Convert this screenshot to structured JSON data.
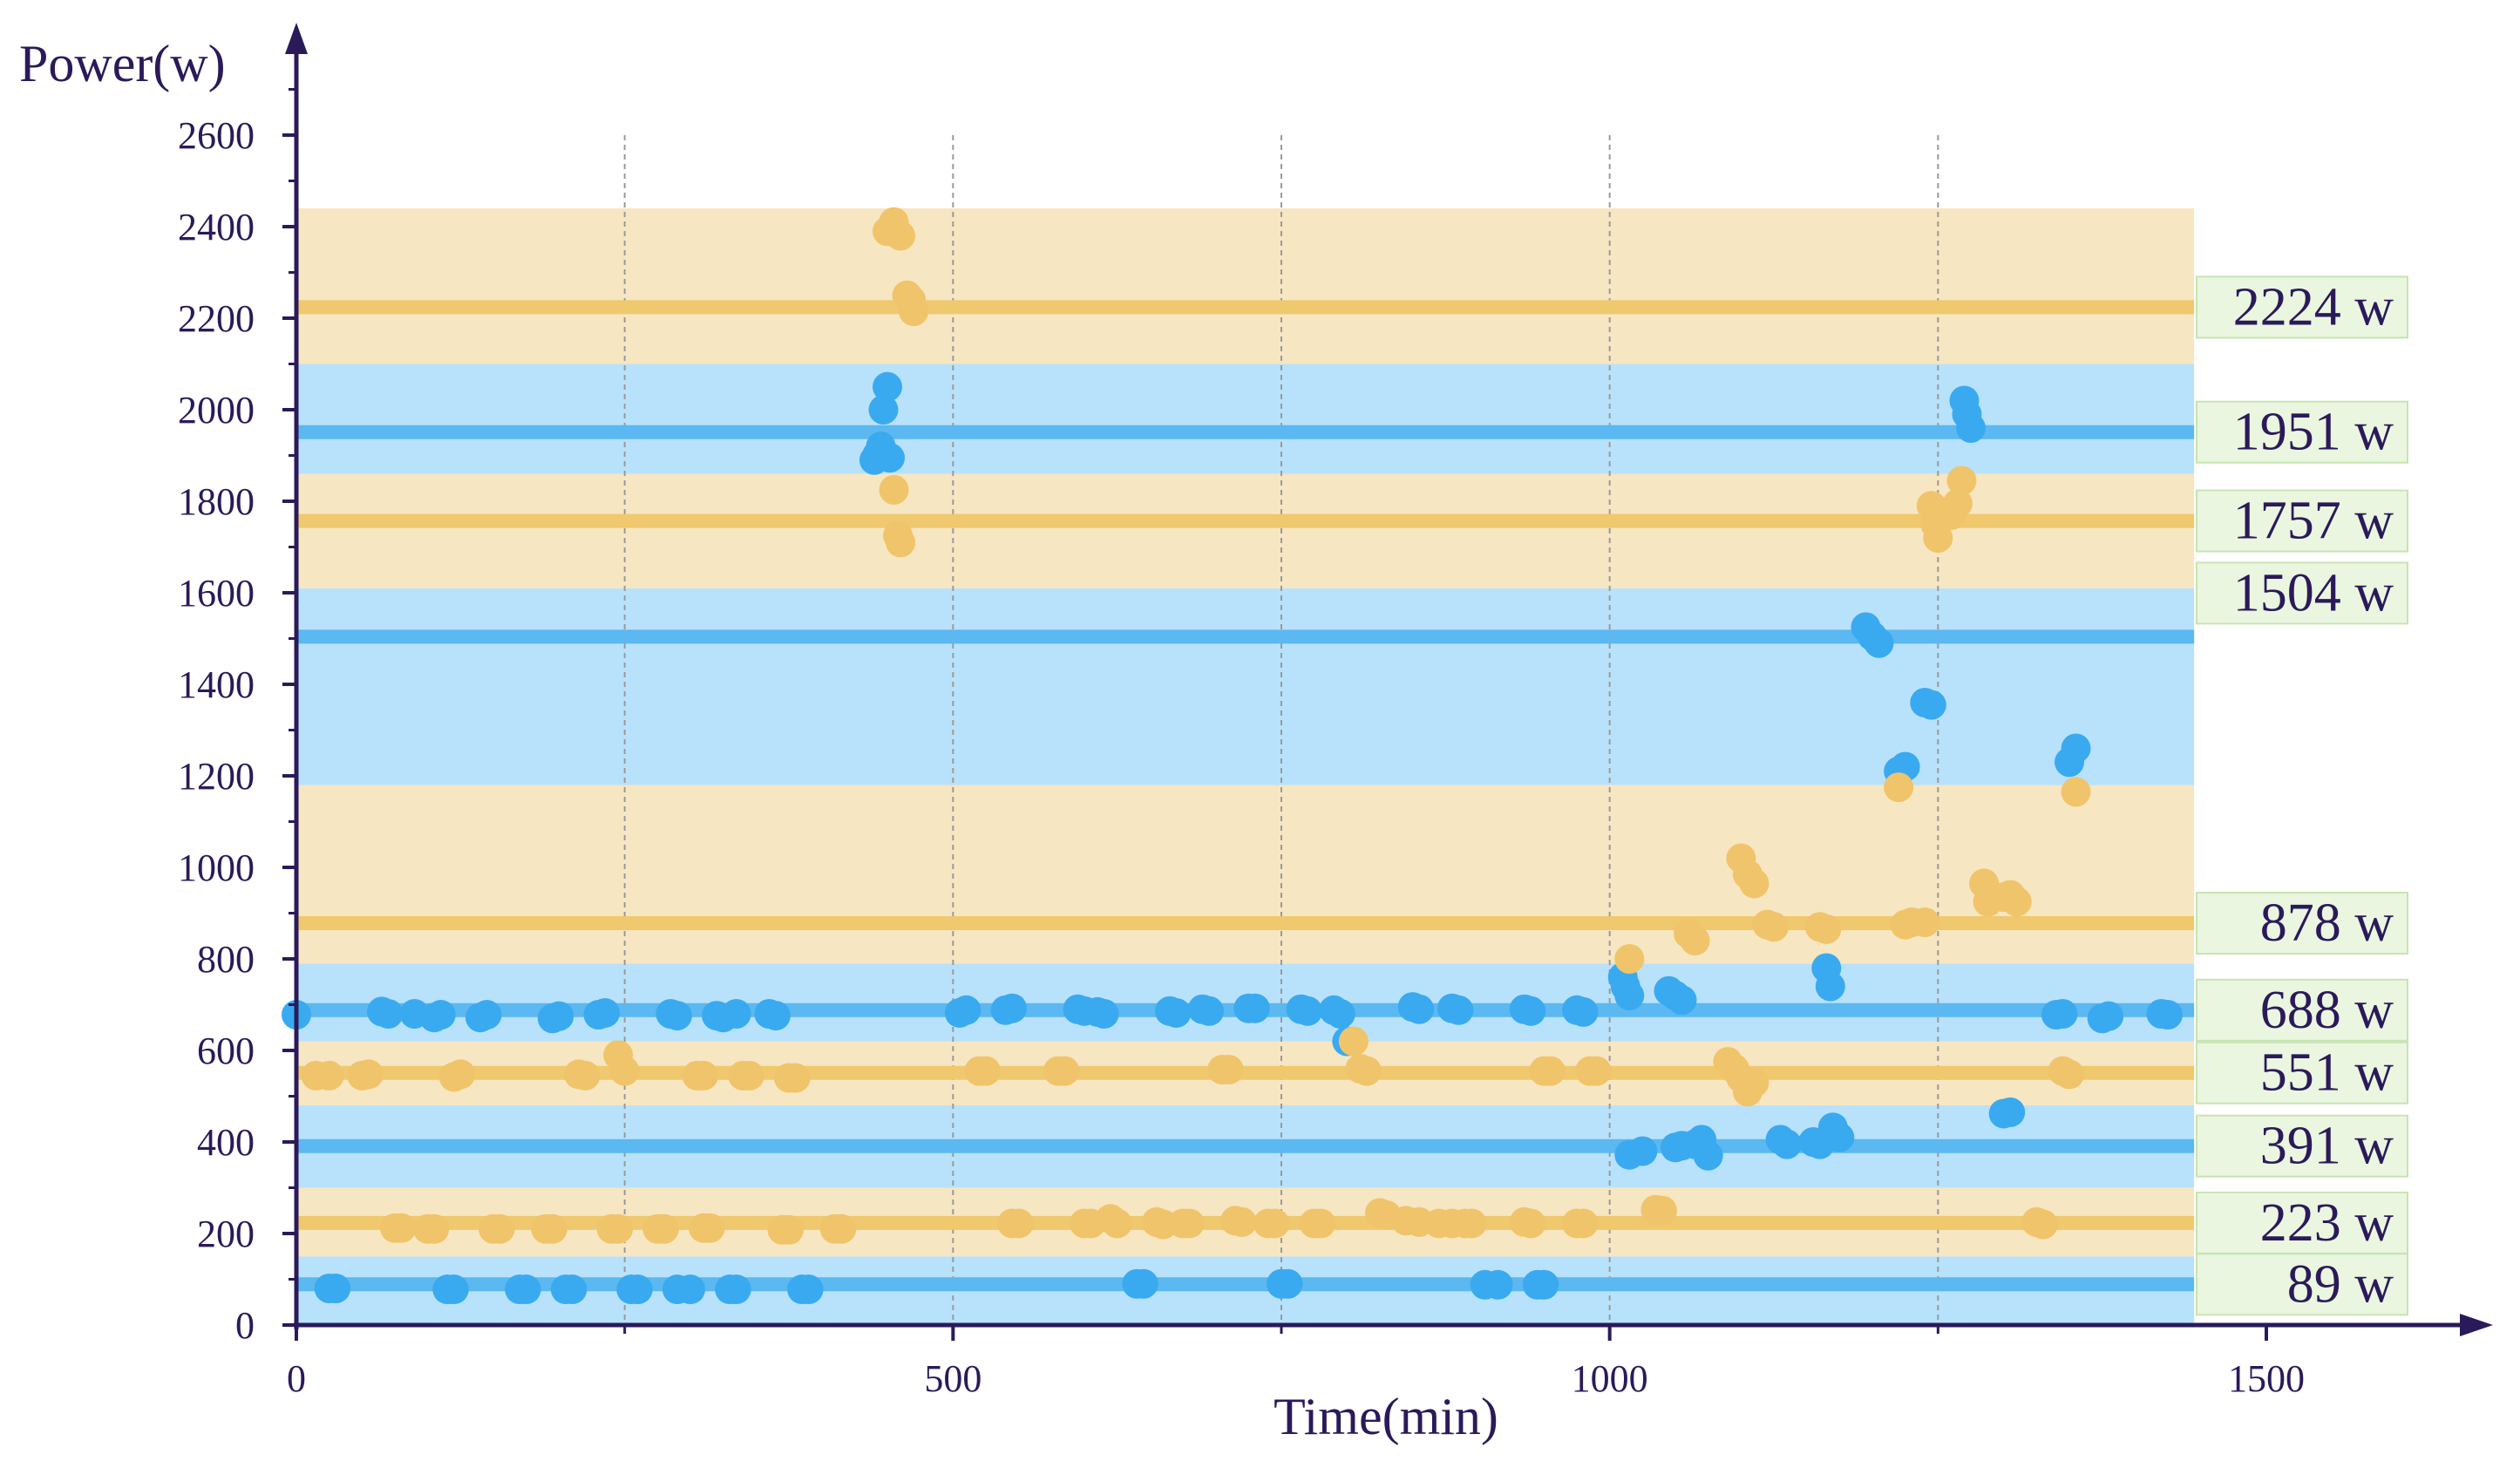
{
  "chart_data": {
    "type": "scatter",
    "title": "",
    "xlabel": "Time(min)",
    "ylabel": "Power(w)",
    "xlim": [
      0,
      1650
    ],
    "ylim": [
      0,
      2720
    ],
    "x_ticks": [
      0,
      500,
      1000,
      1500
    ],
    "y_ticks": [
      0,
      200,
      400,
      600,
      800,
      1000,
      1200,
      1400,
      1600,
      1800,
      2000,
      2200,
      2400,
      2600
    ],
    "grid": "vertical dashed at x = 250, 500, 750, 1000, 1250",
    "colors": {
      "blue_line": "#5bb8f0",
      "orange_line": "#f0c86e",
      "blue_band": "#b8e2fb",
      "orange_band": "#f7e6c2",
      "label_box": "#eaf6df",
      "label_border": "#c7e4b3",
      "axis": "#2b1a5a",
      "blue_point": "#3aaaf0",
      "orange_point": "#f0c46a"
    },
    "bands": [
      {
        "from": 0,
        "to": 150,
        "color": "blue"
      },
      {
        "from": 150,
        "to": 300,
        "color": "orange"
      },
      {
        "from": 300,
        "to": 480,
        "color": "blue"
      },
      {
        "from": 480,
        "to": 620,
        "color": "orange"
      },
      {
        "from": 620,
        "to": 790,
        "color": "blue"
      },
      {
        "from": 790,
        "to": 1180,
        "color": "orange"
      },
      {
        "from": 1180,
        "to": 1610,
        "color": "blue"
      },
      {
        "from": 1610,
        "to": 1860,
        "color": "orange"
      },
      {
        "from": 1860,
        "to": 2100,
        "color": "blue"
      },
      {
        "from": 2100,
        "to": 2440,
        "color": "orange"
      }
    ],
    "levels": [
      {
        "value": 89,
        "label": "89 w",
        "color": "blue"
      },
      {
        "value": 223,
        "label": "223 w",
        "color": "orange"
      },
      {
        "value": 391,
        "label": "391 w",
        "color": "blue"
      },
      {
        "value": 551,
        "label": "551 w",
        "color": "orange"
      },
      {
        "value": 688,
        "label": "688 w",
        "color": "blue"
      },
      {
        "value": 878,
        "label": "878 w",
        "color": "orange"
      },
      {
        "value": 1504,
        "label": "1504 w",
        "color": "blue"
      },
      {
        "value": 1757,
        "label": "1757 w",
        "color": "orange"
      },
      {
        "value": 1951,
        "label": "1951 w",
        "color": "blue"
      },
      {
        "value": 2224,
        "label": "2224 w",
        "color": "orange"
      }
    ],
    "series": [
      {
        "name": "blue",
        "points": [
          [
            25,
            80
          ],
          [
            30,
            80
          ],
          [
            115,
            78
          ],
          [
            120,
            78
          ],
          [
            170,
            78
          ],
          [
            175,
            78
          ],
          [
            205,
            78
          ],
          [
            210,
            78
          ],
          [
            255,
            78
          ],
          [
            260,
            78
          ],
          [
            290,
            78
          ],
          [
            300,
            78
          ],
          [
            330,
            78
          ],
          [
            335,
            78
          ],
          [
            385,
            78
          ],
          [
            390,
            78
          ],
          [
            640,
            90
          ],
          [
            645,
            90
          ],
          [
            750,
            90
          ],
          [
            755,
            90
          ],
          [
            905,
            88
          ],
          [
            915,
            88
          ],
          [
            945,
            88
          ],
          [
            950,
            88
          ],
          [
            0,
            678
          ],
          [
            65,
            685
          ],
          [
            70,
            680
          ],
          [
            90,
            680
          ],
          [
            105,
            672
          ],
          [
            110,
            678
          ],
          [
            140,
            672
          ],
          [
            145,
            678
          ],
          [
            195,
            670
          ],
          [
            200,
            675
          ],
          [
            230,
            678
          ],
          [
            235,
            682
          ],
          [
            285,
            680
          ],
          [
            290,
            676
          ],
          [
            320,
            676
          ],
          [
            325,
            672
          ],
          [
            335,
            680
          ],
          [
            360,
            680
          ],
          [
            365,
            676
          ],
          [
            505,
            682
          ],
          [
            510,
            688
          ],
          [
            540,
            688
          ],
          [
            545,
            692
          ],
          [
            595,
            690
          ],
          [
            600,
            686
          ],
          [
            610,
            684
          ],
          [
            615,
            680
          ],
          [
            665,
            686
          ],
          [
            670,
            682
          ],
          [
            690,
            690
          ],
          [
            695,
            686
          ],
          [
            725,
            692
          ],
          [
            730,
            692
          ],
          [
            765,
            690
          ],
          [
            770,
            686
          ],
          [
            790,
            688
          ],
          [
            795,
            680
          ],
          [
            800,
            620
          ],
          [
            850,
            695
          ],
          [
            855,
            690
          ],
          [
            880,
            692
          ],
          [
            885,
            688
          ],
          [
            935,
            690
          ],
          [
            940,
            686
          ],
          [
            975,
            688
          ],
          [
            980,
            684
          ],
          [
            1010,
            760
          ],
          [
            1012,
            740
          ],
          [
            1015,
            720
          ],
          [
            1045,
            730
          ],
          [
            1050,
            720
          ],
          [
            1055,
            710
          ],
          [
            1015,
            372
          ],
          [
            1025,
            380
          ],
          [
            1050,
            388
          ],
          [
            1055,
            392
          ],
          [
            1065,
            395
          ],
          [
            1070,
            405
          ],
          [
            1075,
            370
          ],
          [
            1130,
            405
          ],
          [
            1135,
            395
          ],
          [
            1155,
            400
          ],
          [
            1160,
            395
          ],
          [
            1165,
            780
          ],
          [
            1168,
            740
          ],
          [
            1170,
            432
          ],
          [
            1175,
            410
          ],
          [
            1195,
            1525
          ],
          [
            1200,
            1505
          ],
          [
            1205,
            1490
          ],
          [
            1220,
            1210
          ],
          [
            1225,
            1220
          ],
          [
            1240,
            1360
          ],
          [
            1245,
            1355
          ],
          [
            1270,
            2020
          ],
          [
            1272,
            1990
          ],
          [
            1275,
            1960
          ],
          [
            1300,
            462
          ],
          [
            1305,
            465
          ],
          [
            1350,
            1230
          ],
          [
            1355,
            1260
          ],
          [
            1340,
            678
          ],
          [
            1345,
            680
          ],
          [
            1375,
            670
          ],
          [
            1380,
            675
          ],
          [
            1420,
            680
          ],
          [
            1425,
            678
          ],
          [
            440,
            1890
          ],
          [
            442,
            1900
          ],
          [
            445,
            1920
          ],
          [
            447,
            2000
          ],
          [
            450,
            2050
          ],
          [
            452,
            1895
          ]
        ]
      },
      {
        "name": "orange",
        "points": [
          [
            15,
            545
          ],
          [
            25,
            545
          ],
          [
            50,
            545
          ],
          [
            55,
            548
          ],
          [
            120,
            542
          ],
          [
            125,
            548
          ],
          [
            215,
            548
          ],
          [
            220,
            545
          ],
          [
            245,
            590
          ],
          [
            250,
            555
          ],
          [
            305,
            545
          ],
          [
            310,
            545
          ],
          [
            340,
            545
          ],
          [
            345,
            545
          ],
          [
            375,
            540
          ],
          [
            380,
            540
          ],
          [
            520,
            555
          ],
          [
            525,
            555
          ],
          [
            580,
            555
          ],
          [
            585,
            555
          ],
          [
            705,
            558
          ],
          [
            710,
            558
          ],
          [
            805,
            620
          ],
          [
            810,
            560
          ],
          [
            815,
            555
          ],
          [
            950,
            555
          ],
          [
            955,
            555
          ],
          [
            985,
            555
          ],
          [
            990,
            555
          ],
          [
            1090,
            575
          ],
          [
            1095,
            560
          ],
          [
            1100,
            540
          ],
          [
            1105,
            510
          ],
          [
            1110,
            530
          ],
          [
            1345,
            555
          ],
          [
            1350,
            548
          ],
          [
            75,
            212
          ],
          [
            80,
            212
          ],
          [
            100,
            210
          ],
          [
            105,
            210
          ],
          [
            150,
            210
          ],
          [
            155,
            210
          ],
          [
            190,
            210
          ],
          [
            195,
            210
          ],
          [
            240,
            210
          ],
          [
            245,
            210
          ],
          [
            275,
            210
          ],
          [
            280,
            210
          ],
          [
            310,
            212
          ],
          [
            315,
            212
          ],
          [
            370,
            208
          ],
          [
            375,
            208
          ],
          [
            410,
            210
          ],
          [
            415,
            210
          ],
          [
            545,
            222
          ],
          [
            550,
            222
          ],
          [
            600,
            222
          ],
          [
            605,
            222
          ],
          [
            620,
            232
          ],
          [
            625,
            222
          ],
          [
            655,
            225
          ],
          [
            660,
            220
          ],
          [
            675,
            222
          ],
          [
            680,
            222
          ],
          [
            715,
            228
          ],
          [
            720,
            225
          ],
          [
            740,
            222
          ],
          [
            745,
            222
          ],
          [
            775,
            222
          ],
          [
            780,
            222
          ],
          [
            825,
            245
          ],
          [
            830,
            240
          ],
          [
            845,
            228
          ],
          [
            855,
            225
          ],
          [
            870,
            222
          ],
          [
            880,
            222
          ],
          [
            890,
            222
          ],
          [
            895,
            222
          ],
          [
            935,
            225
          ],
          [
            940,
            222
          ],
          [
            975,
            222
          ],
          [
            980,
            222
          ],
          [
            1035,
            252
          ],
          [
            1040,
            250
          ],
          [
            1325,
            225
          ],
          [
            1330,
            220
          ],
          [
            1015,
            800
          ],
          [
            1060,
            855
          ],
          [
            1065,
            840
          ],
          [
            1100,
            1020
          ],
          [
            1105,
            985
          ],
          [
            1110,
            965
          ],
          [
            1120,
            875
          ],
          [
            1125,
            870
          ],
          [
            1160,
            870
          ],
          [
            1165,
            865
          ],
          [
            1220,
            1175
          ],
          [
            1225,
            875
          ],
          [
            1230,
            880
          ],
          [
            1240,
            880
          ],
          [
            1285,
            965
          ],
          [
            1288,
            925
          ],
          [
            1300,
            935
          ],
          [
            1305,
            940
          ],
          [
            1310,
            925
          ],
          [
            1355,
            1165
          ],
          [
            1245,
            1790
          ],
          [
            1248,
            1750
          ],
          [
            1250,
            1720
          ],
          [
            1260,
            1770
          ],
          [
            1265,
            1795
          ],
          [
            1268,
            1845
          ],
          [
            450,
            2390
          ],
          [
            455,
            2410
          ],
          [
            460,
            2380
          ],
          [
            465,
            2250
          ],
          [
            468,
            2240
          ],
          [
            470,
            2215
          ],
          [
            455,
            1825
          ],
          [
            458,
            1725
          ],
          [
            460,
            1710
          ]
        ]
      }
    ]
  }
}
